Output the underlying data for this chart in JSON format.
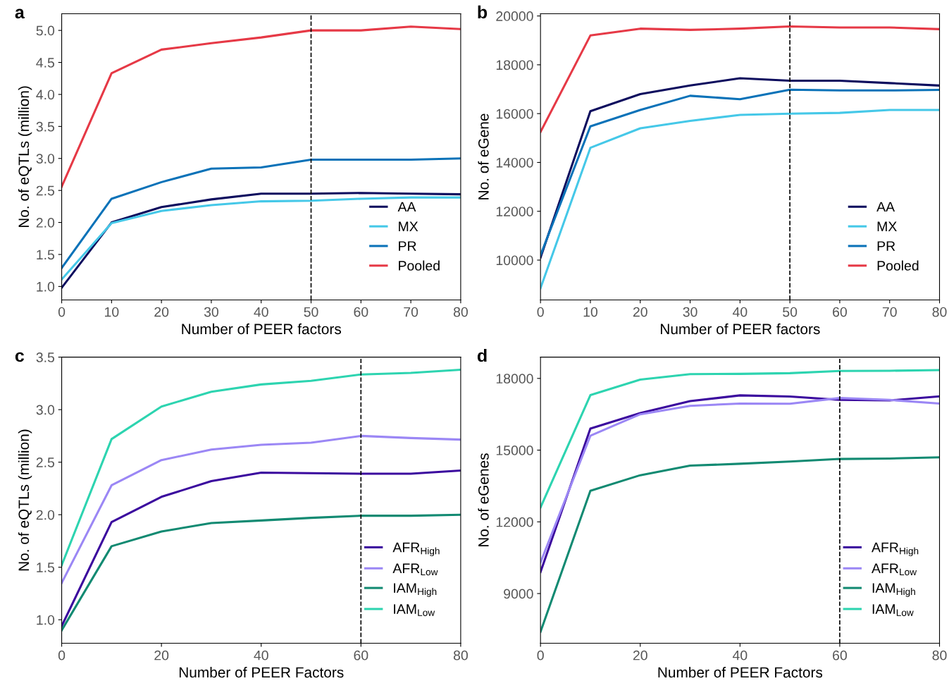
{
  "chart_data": [
    {
      "type": "line",
      "title": "a",
      "xlabel": "Number of PEER factors",
      "ylabel": "No. of eQTLs (million)",
      "x": [
        0,
        10,
        20,
        30,
        40,
        50,
        60,
        70,
        80
      ],
      "xlim": [
        0,
        80
      ],
      "xticks": [
        0,
        10,
        20,
        30,
        40,
        50,
        60,
        70,
        80
      ],
      "ylim": [
        0.79,
        5.26
      ],
      "yticks": [
        {
          "value": 1,
          "label": "1.0"
        },
        1.5,
        {
          "value": 2,
          "label": "2.0"
        },
        2.5,
        {
          "value": 3,
          "label": "3.0"
        },
        3.5,
        {
          "value": 4,
          "label": "4.0"
        },
        4.5,
        {
          "value": 5,
          "label": "5.0"
        }
      ],
      "legend": "bottom right",
      "grid": false,
      "ref_lines": [
        {
          "axis": "x",
          "value": 50,
          "color": "#000000",
          "line_style": "dashed"
        }
      ],
      "series": [
        {
          "name": "AA",
          "color": "#0d0d5e",
          "values": [
            0.98,
            2.0,
            2.24,
            2.36,
            2.45,
            2.45,
            2.46,
            2.45,
            2.44
          ]
        },
        {
          "name": "MX",
          "color": "#45c8e8",
          "values": [
            1.11,
            1.99,
            2.18,
            2.27,
            2.33,
            2.34,
            2.37,
            2.39,
            2.39
          ]
        },
        {
          "name": "PR",
          "color": "#0a72b8",
          "values": [
            1.29,
            2.37,
            2.63,
            2.84,
            2.86,
            2.98,
            2.98,
            2.98,
            3.0
          ]
        },
        {
          "name": "Pooled",
          "color": "#e63946",
          "values": [
            2.56,
            4.33,
            4.7,
            4.8,
            4.89,
            5.0,
            5.0,
            5.06,
            5.02
          ]
        }
      ]
    },
    {
      "type": "line",
      "title": "b",
      "xlabel": "Number of PEER factors",
      "ylabel": "No. of eGene",
      "x": [
        0,
        10,
        20,
        30,
        40,
        50,
        60,
        70,
        80
      ],
      "xlim": [
        0,
        80
      ],
      "xticks": [
        0,
        10,
        20,
        30,
        40,
        50,
        60,
        70,
        80
      ],
      "ylim": [
        8370,
        20090
      ],
      "yticks": [
        10000,
        12000,
        14000,
        16000,
        18000,
        20000
      ],
      "legend": "bottom right",
      "grid": false,
      "ref_lines": [
        {
          "axis": "x",
          "value": 50,
          "color": "#000000",
          "line_style": "dashed"
        }
      ],
      "series": [
        {
          "name": "AA",
          "color": "#0d0d5e",
          "values": [
            10100,
            16100,
            16800,
            17150,
            17450,
            17350,
            17350,
            17250,
            17150
          ]
        },
        {
          "name": "MX",
          "color": "#45c8e8",
          "values": [
            8850,
            14600,
            15400,
            15700,
            15950,
            16000,
            16030,
            16150,
            16150
          ]
        },
        {
          "name": "PR",
          "color": "#0a72b8",
          "values": [
            10200,
            15480,
            16150,
            16730,
            16590,
            16980,
            16950,
            16950,
            16970
          ]
        },
        {
          "name": "Pooled",
          "color": "#e63946",
          "values": [
            15250,
            19200,
            19480,
            19430,
            19480,
            19570,
            19530,
            19530,
            19460
          ]
        }
      ]
    },
    {
      "type": "line",
      "title": "c",
      "xlabel": "Number of PEER Factors",
      "ylabel": "No. of eQTLs (million)",
      "x": [
        0,
        10,
        20,
        30,
        40,
        50,
        60,
        70,
        80
      ],
      "xlim": [
        0,
        80
      ],
      "xticks": [
        0,
        20,
        40,
        60,
        80
      ],
      "ylim": [
        0.776,
        3.5
      ],
      "yticks": [
        {
          "value": 1,
          "label": "1.0"
        },
        1.5,
        {
          "value": 2,
          "label": "2.0"
        },
        2.5,
        {
          "value": 3,
          "label": "3.0"
        },
        3.5
      ],
      "legend": "bottom right",
      "grid": false,
      "ref_lines": [
        {
          "axis": "x",
          "value": 60,
          "color": "#000000",
          "line_style": "dashed"
        }
      ],
      "series": [
        {
          "name": "AFR$_{High}$",
          "color": "#3b0a9e",
          "values": [
            0.94,
            1.93,
            2.17,
            2.32,
            2.4,
            2.395,
            2.39,
            2.39,
            2.42
          ]
        },
        {
          "name": "AFR$_{Low}$",
          "color": "#9b87f5",
          "values": [
            1.35,
            2.28,
            2.52,
            2.62,
            2.665,
            2.685,
            2.75,
            2.73,
            2.715
          ]
        },
        {
          "name": "IAM$_{High}$",
          "color": "#128a72",
          "values": [
            0.9,
            1.7,
            1.84,
            1.92,
            1.945,
            1.97,
            1.99,
            1.99,
            2.0
          ]
        },
        {
          "name": "IAM$_{Low}$",
          "color": "#2dd4b0",
          "values": [
            1.52,
            2.72,
            3.03,
            3.17,
            3.24,
            3.275,
            3.335,
            3.35,
            3.38
          ]
        }
      ]
    },
    {
      "type": "line",
      "title": "d",
      "xlabel": "Number of PEER Factors",
      "ylabel": "No. of eGenes",
      "x": [
        0,
        10,
        20,
        30,
        40,
        50,
        60,
        70,
        80
      ],
      "xlim": [
        0,
        80
      ],
      "xticks": [
        0,
        20,
        40,
        60,
        80
      ],
      "ylim": [
        6920,
        18890
      ],
      "yticks": [
        9000,
        12000,
        15000,
        18000
      ],
      "legend": "bottom right",
      "grid": false,
      "ref_lines": [
        {
          "axis": "x",
          "value": 60,
          "color": "#000000",
          "line_style": "dashed"
        }
      ],
      "series": [
        {
          "name": "AFR$_{High}$",
          "color": "#3b0a9e",
          "values": [
            9900,
            15900,
            16550,
            17050,
            17290,
            17240,
            17100,
            17080,
            17250
          ]
        },
        {
          "name": "AFR$_{Low}$",
          "color": "#9b87f5",
          "values": [
            10300,
            15600,
            16500,
            16850,
            16950,
            16940,
            17180,
            17100,
            16950
          ]
        },
        {
          "name": "IAM$_{High}$",
          "color": "#128a72",
          "values": [
            7400,
            13300,
            13950,
            14350,
            14430,
            14520,
            14630,
            14650,
            14700
          ]
        },
        {
          "name": "IAM$_{Low}$",
          "color": "#2dd4b0",
          "values": [
            12600,
            17300,
            17950,
            18180,
            18190,
            18220,
            18310,
            18320,
            18350
          ]
        }
      ]
    }
  ]
}
